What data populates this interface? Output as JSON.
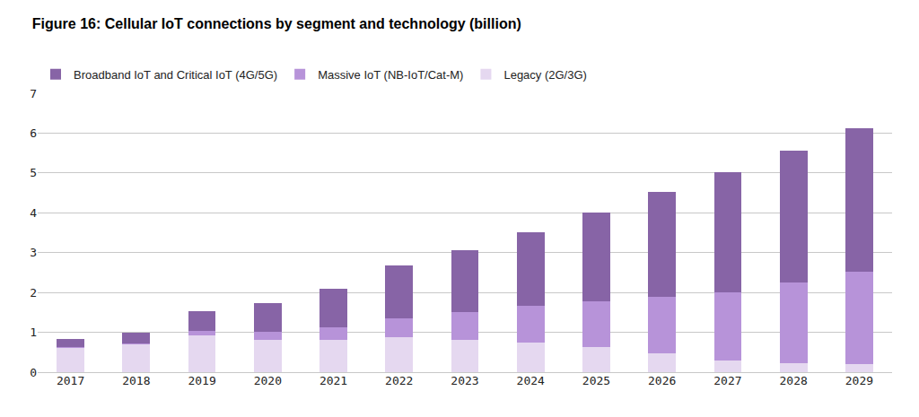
{
  "chart_data": {
    "type": "bar",
    "title": "Figure 16: Cellular IoT connections by segment and technology (billion)",
    "categories": [
      "2017",
      "2018",
      "2019",
      "2020",
      "2021",
      "2022",
      "2023",
      "2024",
      "2025",
      "2026",
      "2027",
      "2028",
      "2029"
    ],
    "series": [
      {
        "name": "Broadband IoT and Critical IoT (4G/5G)",
        "color": "#8764a6",
        "values": [
          0.19,
          0.28,
          0.5,
          0.71,
          0.97,
          1.33,
          1.55,
          1.85,
          2.22,
          2.62,
          3.02,
          3.32,
          3.59
        ]
      },
      {
        "name": "Massive IoT (NB-IoT/Cat-M)",
        "color": "#b793d9",
        "values": [
          0.02,
          0.02,
          0.1,
          0.2,
          0.31,
          0.48,
          0.7,
          0.92,
          1.15,
          1.43,
          1.7,
          2.03,
          2.33
        ]
      },
      {
        "name": "Legacy (2G/3G)",
        "color": "#e5d8f0",
        "values": [
          0.62,
          0.7,
          0.93,
          0.82,
          0.82,
          0.87,
          0.8,
          0.75,
          0.63,
          0.47,
          0.3,
          0.22,
          0.2
        ]
      }
    ],
    "stacked": true,
    "ylim": [
      0,
      7
    ],
    "yticks": [
      0,
      1,
      2,
      3,
      4,
      5,
      6,
      7
    ],
    "grid": true,
    "legend": "top-left"
  }
}
